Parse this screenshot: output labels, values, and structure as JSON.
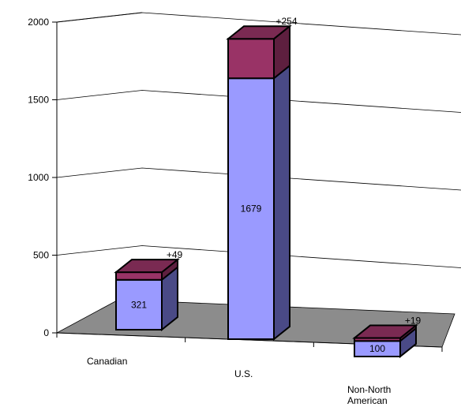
{
  "chart_data": {
    "type": "bar",
    "stacked": true,
    "three_d": true,
    "categories": [
      "Canadian",
      "U.S.",
      "Non-North\nAmerican"
    ],
    "series": [
      {
        "values": [
          321,
          1679,
          100
        ]
      },
      {
        "values": [
          49,
          254,
          19
        ]
      }
    ],
    "increment_labels": [
      "+49",
      "+254",
      "+19"
    ],
    "y_ticks": [
      "0",
      "500",
      "1000",
      "1500",
      "2000"
    ],
    "ylim": [
      0,
      2000
    ],
    "grid": true,
    "legend": "none",
    "colors": {
      "base_front": "#9a9aff",
      "base_side": "#4a4a86",
      "base_top": "#b4b4ff",
      "increment_front": "#993366",
      "increment_side": "#5e1f3f",
      "increment_top": "#7a2a52",
      "floor": "#8c8c8c",
      "grid": "#000000"
    }
  }
}
